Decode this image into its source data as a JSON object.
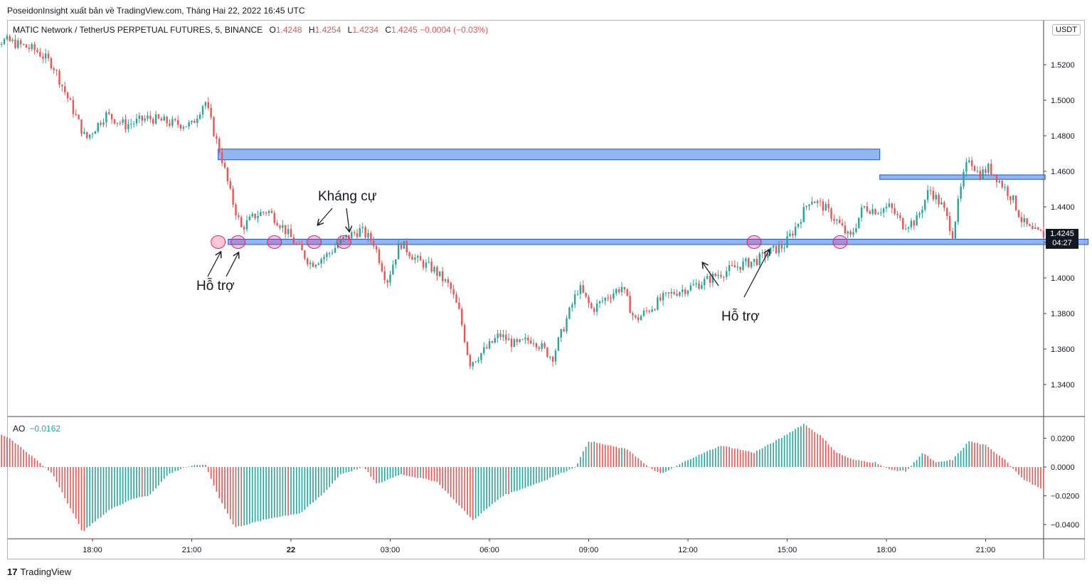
{
  "caption": "PoseidonInsight xuất bản về TradingView.com, Tháng Hai 22, 2022 16:45 UTC",
  "legend": {
    "symbol": "MATIC Network / TetherUS PERPETUAL FUTURES, 5, BINANCE",
    "o_label": "O",
    "o": "1.4248",
    "h_label": "H",
    "h": "1.4254",
    "l_label": "L",
    "l": "1.4234",
    "c_label": "C",
    "c": "1.4245",
    "change": "−0.0004 (−0.03%)"
  },
  "ao_legend": {
    "name": "AO",
    "value": "−0.0162"
  },
  "unit": "USDT",
  "last_price": {
    "price": "1.4245",
    "countdown": "04:27"
  },
  "annotations": {
    "resistance": "Kháng cự",
    "support_left": "Hỗ trợ",
    "support_right": "Hỗ trợ"
  },
  "footer": {
    "brand": "TradingView",
    "logo": "17"
  },
  "colors": {
    "up": "#26a69a",
    "down": "#ef5350",
    "zone_fill": "#6d9eeb",
    "zone_border": "#1e53e5",
    "circle": "#e91e63"
  },
  "chart_data": [
    {
      "type": "candlestick",
      "ylim": [
        1.33,
        1.54
      ],
      "yticks": [
        "1.5200",
        "1.5000",
        "1.4800",
        "1.4600",
        "1.4400",
        "1.4200",
        "1.4000",
        "1.3800",
        "1.3600",
        "1.3400"
      ],
      "x_ticks": [
        "18:00",
        "21:00",
        "22",
        "03:00",
        "06:00",
        "09:00",
        "12:00",
        "15:00",
        "18:00",
        "21:00"
      ],
      "x_range_hours": [
        -3.5,
        28.75
      ],
      "close_path": [
        [
          -3.5,
          1.535
        ],
        [
          -2.5,
          1.533
        ],
        [
          -1.7,
          1.528
        ],
        [
          -1.2,
          1.52
        ],
        [
          -0.6,
          1.495
        ],
        [
          -0.2,
          1.478
        ],
        [
          0.4,
          1.492
        ],
        [
          1.0,
          1.486
        ],
        [
          1.7,
          1.49
        ],
        [
          2.4,
          1.487
        ],
        [
          3.0,
          1.486
        ],
        [
          3.4,
          1.5
        ],
        [
          3.7,
          1.48
        ],
        [
          3.9,
          1.468
        ],
        [
          4.2,
          1.445
        ],
        [
          4.5,
          1.428
        ],
        [
          4.9,
          1.435
        ],
        [
          5.3,
          1.438
        ],
        [
          5.7,
          1.43
        ],
        [
          6.1,
          1.42
        ],
        [
          6.6,
          1.408
        ],
        [
          7.1,
          1.413
        ],
        [
          7.6,
          1.422
        ],
        [
          8.1,
          1.427
        ],
        [
          8.5,
          1.42
        ],
        [
          8.9,
          1.398
        ],
        [
          9.3,
          1.42
        ],
        [
          9.8,
          1.41
        ],
        [
          10.3,
          1.405
        ],
        [
          10.8,
          1.395
        ],
        [
          11.1,
          1.38
        ],
        [
          11.4,
          1.352
        ],
        [
          11.9,
          1.36
        ],
        [
          12.3,
          1.368
        ],
        [
          12.8,
          1.362
        ],
        [
          13.3,
          1.366
        ],
        [
          13.9,
          1.355
        ],
        [
          14.3,
          1.375
        ],
        [
          14.7,
          1.395
        ],
        [
          15.1,
          1.382
        ],
        [
          15.6,
          1.39
        ],
        [
          16.0,
          1.395
        ],
        [
          16.4,
          1.376
        ],
        [
          16.8,
          1.382
        ],
        [
          17.2,
          1.388
        ],
        [
          17.6,
          1.392
        ],
        [
          18.1,
          1.395
        ],
        [
          18.5,
          1.398
        ],
        [
          18.9,
          1.402
        ],
        [
          19.3,
          1.405
        ],
        [
          19.7,
          1.408
        ],
        [
          20.1,
          1.41
        ],
        [
          20.5,
          1.415
        ],
        [
          20.9,
          1.418
        ],
        [
          21.3,
          1.43
        ],
        [
          21.7,
          1.445
        ],
        [
          22.1,
          1.44
        ],
        [
          22.5,
          1.432
        ],
        [
          22.9,
          1.422
        ],
        [
          23.3,
          1.44
        ],
        [
          23.7,
          1.438
        ],
        [
          24.1,
          1.44
        ],
        [
          24.5,
          1.43
        ],
        [
          24.9,
          1.432
        ],
        [
          25.3,
          1.45
        ],
        [
          25.7,
          1.44
        ],
        [
          26.0,
          1.425
        ],
        [
          26.3,
          1.455
        ],
        [
          26.5,
          1.468
        ],
        [
          26.8,
          1.458
        ],
        [
          27.1,
          1.462
        ],
        [
          27.4,
          1.455
        ],
        [
          27.8,
          1.445
        ],
        [
          28.1,
          1.432
        ],
        [
          28.4,
          1.426
        ],
        [
          28.75,
          1.4245
        ]
      ],
      "zones": [
        {
          "from_h": 3.8,
          "to_h": 23.8,
          "low": 1.4665,
          "high": 1.4725
        },
        {
          "from_h": 23.8,
          "to_h": 28.8,
          "low": 1.4555,
          "high": 1.458
        },
        {
          "from_h": 4.1,
          "to_h": 30.1,
          "low": 1.4188,
          "high": 1.4218
        }
      ],
      "circles_h": [
        3.8,
        4.4,
        5.5,
        6.7,
        7.6,
        20.0,
        22.6
      ],
      "circle_price": 1.4202
    },
    {
      "type": "bar",
      "name": "AO",
      "ylim": [
        -0.048,
        0.03
      ],
      "yticks": [
        "0.0200",
        "0.0000",
        "−0.0200",
        "−0.0400"
      ],
      "path": [
        [
          -3.5,
          0.03
        ],
        [
          -2.5,
          0.02
        ],
        [
          -1.7,
          0.005
        ],
        [
          -1.2,
          -0.005
        ],
        [
          -0.3,
          -0.045
        ],
        [
          0.5,
          -0.03
        ],
        [
          1.2,
          -0.022
        ],
        [
          1.7,
          -0.02
        ],
        [
          2.3,
          -0.005
        ],
        [
          2.8,
          0.0
        ],
        [
          3.4,
          0.002
        ],
        [
          3.8,
          -0.02
        ],
        [
          4.3,
          -0.042
        ],
        [
          5.5,
          -0.035
        ],
        [
          6.3,
          -0.032
        ],
        [
          7.0,
          -0.018
        ],
        [
          7.5,
          -0.005
        ],
        [
          8.2,
          0.0
        ],
        [
          8.6,
          -0.012
        ],
        [
          9.3,
          -0.005
        ],
        [
          10.4,
          -0.01
        ],
        [
          11.5,
          -0.037
        ],
        [
          12.4,
          -0.02
        ],
        [
          13.6,
          -0.01
        ],
        [
          14.6,
          0.0
        ],
        [
          15.0,
          0.018
        ],
        [
          16.2,
          0.012
        ],
        [
          16.8,
          0.0
        ],
        [
          17.2,
          -0.005
        ],
        [
          18.0,
          0.005
        ],
        [
          19.0,
          0.015
        ],
        [
          20.0,
          0.01
        ],
        [
          20.8,
          0.02
        ],
        [
          21.5,
          0.03
        ],
        [
          22.0,
          0.022
        ],
        [
          22.5,
          0.01
        ],
        [
          23.0,
          0.005
        ],
        [
          23.7,
          0.003
        ],
        [
          24.1,
          -0.002
        ],
        [
          24.6,
          -0.003
        ],
        [
          25.1,
          0.01
        ],
        [
          25.5,
          0.003
        ],
        [
          26.0,
          0.005
        ],
        [
          26.5,
          0.018
        ],
        [
          27.0,
          0.015
        ],
        [
          27.6,
          0.005
        ],
        [
          28.1,
          -0.008
        ],
        [
          28.75,
          -0.0162
        ]
      ]
    }
  ]
}
